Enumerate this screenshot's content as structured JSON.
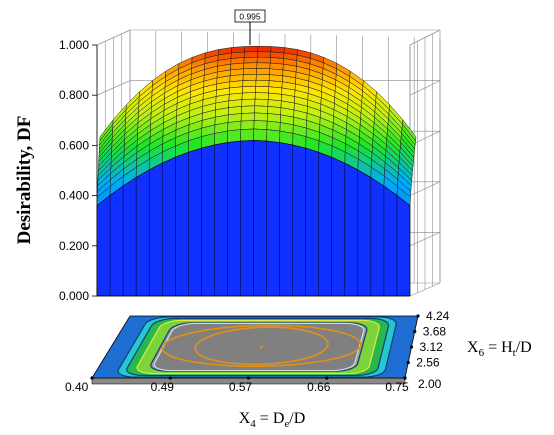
{
  "chart_data": {
    "type": "surface3d",
    "zlabel": "Desirability, DF",
    "x_axis": {
      "label_main": "X",
      "label_sub": "4",
      "label_eq": " = D",
      "label_sub2": "e",
      "label_tail": "/D",
      "ticks": [
        "0.40",
        "0.49",
        "0.57",
        "0.66",
        "0.75"
      ]
    },
    "y_axis": {
      "label_main": "X",
      "label_sub": "6",
      "label_eq": " = H",
      "label_sub2": "t",
      "label_tail": "/D",
      "ticks": [
        "2.00",
        "2.56",
        "3.12",
        "3.68",
        "4.24"
      ]
    },
    "z_axis": {
      "ticks": [
        "0.000",
        "0.200",
        "0.400",
        "0.600",
        "0.800",
        "1.000"
      ],
      "range": [
        0,
        1
      ]
    },
    "peak_label": "0.995",
    "peak_value": 0.995,
    "surface": {
      "front_level": 0.61,
      "colormap": "blue-green-yellow-red"
    },
    "contour_levels": [
      0.2,
      0.4,
      0.6,
      0.8
    ]
  }
}
